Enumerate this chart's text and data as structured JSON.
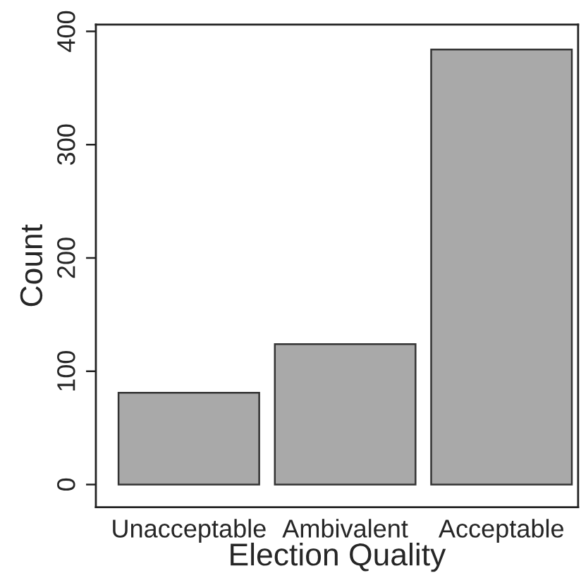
{
  "chart_data": {
    "type": "bar",
    "xlabel": "Election Quality",
    "ylabel": "Count",
    "categories": [
      "Unacceptable",
      "Ambivalent",
      "Acceptable"
    ],
    "values": [
      81,
      124,
      384
    ],
    "color": "#a9a9a9",
    "ylim": [
      -20,
      406
    ],
    "yticks": [
      0,
      100,
      200,
      300,
      400
    ],
    "grid": false
  }
}
